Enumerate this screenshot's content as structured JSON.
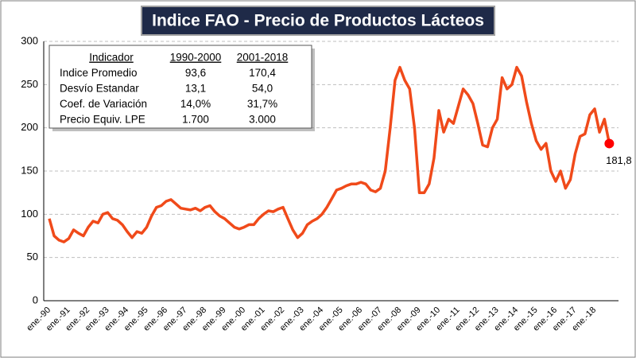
{
  "chart_data": {
    "type": "line",
    "title": "Indice FAO - Precio de Productos Lácteos",
    "categories": [
      "ene.-90",
      null,
      null,
      null,
      "ene.-91",
      null,
      null,
      null,
      "ene.-92",
      null,
      null,
      null,
      "ene.-93",
      null,
      null,
      null,
      "ene.-94",
      null,
      null,
      null,
      "ene.-95",
      null,
      null,
      null,
      "ene.-96",
      null,
      null,
      null,
      "ene.-97",
      null,
      null,
      null,
      "ene.-98",
      null,
      null,
      null,
      "ene.-99",
      null,
      null,
      null,
      "ene.-00",
      null,
      null,
      null,
      "ene.-01",
      null,
      null,
      null,
      "ene.-02",
      null,
      null,
      null,
      "ene.-03",
      null,
      null,
      null,
      "ene.-04",
      null,
      null,
      null,
      "ene.-05",
      null,
      null,
      null,
      "ene.-06",
      null,
      null,
      null,
      "ene.-07",
      null,
      null,
      null,
      "ene.-08",
      null,
      null,
      null,
      "ene.-09",
      null,
      null,
      null,
      "ene.-10",
      null,
      null,
      null,
      "ene.-11",
      null,
      null,
      null,
      "ene.-12",
      null,
      null,
      null,
      "ene.-13",
      null,
      null,
      null,
      "ene.-14",
      null,
      null,
      null,
      "ene.-15",
      null,
      null,
      null,
      "ene.-16",
      null,
      null,
      null,
      "ene.-17",
      null,
      null,
      null,
      "ene.-18",
      null,
      null,
      null
    ],
    "values": [
      95,
      75,
      70,
      68,
      72,
      82,
      78,
      75,
      85,
      92,
      90,
      100,
      102,
      95,
      93,
      88,
      80,
      73,
      80,
      78,
      85,
      98,
      108,
      110,
      115,
      117,
      112,
      107,
      106,
      105,
      107,
      104,
      108,
      110,
      103,
      98,
      95,
      90,
      85,
      83,
      85,
      88,
      88,
      95,
      100,
      104,
      103,
      106,
      108,
      95,
      82,
      73,
      78,
      88,
      92,
      95,
      100,
      108,
      118,
      128,
      130,
      133,
      135,
      135,
      137,
      135,
      128,
      126,
      130,
      150,
      200,
      255,
      270,
      255,
      245,
      200,
      125,
      125,
      135,
      165,
      220,
      195,
      210,
      205,
      225,
      245,
      238,
      228,
      205,
      180,
      178,
      200,
      210,
      258,
      245,
      250,
      270,
      260,
      230,
      205,
      185,
      175,
      182,
      150,
      138,
      150,
      130,
      140,
      170,
      190,
      193,
      215,
      222,
      195,
      210,
      181.8
    ],
    "value_labels": [
      null,
      null,
      null,
      null,
      null,
      null,
      null,
      null,
      null,
      null,
      null,
      null,
      null,
      null,
      null,
      null,
      null,
      null,
      null,
      null,
      null,
      null,
      null,
      null,
      null,
      null,
      null,
      null,
      null,
      null,
      null,
      null,
      null,
      null,
      null,
      null,
      null,
      null,
      null,
      null,
      null,
      null,
      null,
      null,
      null,
      null,
      null,
      null,
      null,
      null,
      null,
      null,
      null,
      null,
      null,
      null,
      null,
      null,
      null,
      null,
      null,
      null,
      null,
      null,
      null,
      null,
      null,
      null,
      null,
      null,
      null,
      null,
      null,
      null,
      null,
      null,
      null,
      null,
      null,
      null,
      null,
      null,
      null,
      null,
      null,
      null,
      null,
      null,
      null,
      null,
      null,
      null,
      null,
      null,
      null,
      null,
      null,
      null,
      null,
      null,
      null,
      null,
      null,
      null,
      null,
      null,
      null,
      null,
      null,
      null,
      null,
      null,
      null,
      null,
      null,
      "181,8"
    ],
    "color": "#f04a1a",
    "marker_color": "#ff0000",
    "ylim": [
      0,
      300
    ],
    "yticks": [
      0,
      50,
      100,
      150,
      200,
      250,
      300
    ],
    "grid": true
  },
  "table": {
    "header": [
      "Indicador",
      "1990-2000",
      "2001-2018"
    ],
    "rows": [
      [
        "Indice Promedio",
        "93,6",
        "170,4"
      ],
      [
        "Desvío Estandar",
        "13,1",
        "54,0"
      ],
      [
        "Coef. de Variación",
        "14,0%",
        "31,7%"
      ],
      [
        "Precio Equiv. LPE",
        "1.700",
        "3.000"
      ]
    ]
  }
}
